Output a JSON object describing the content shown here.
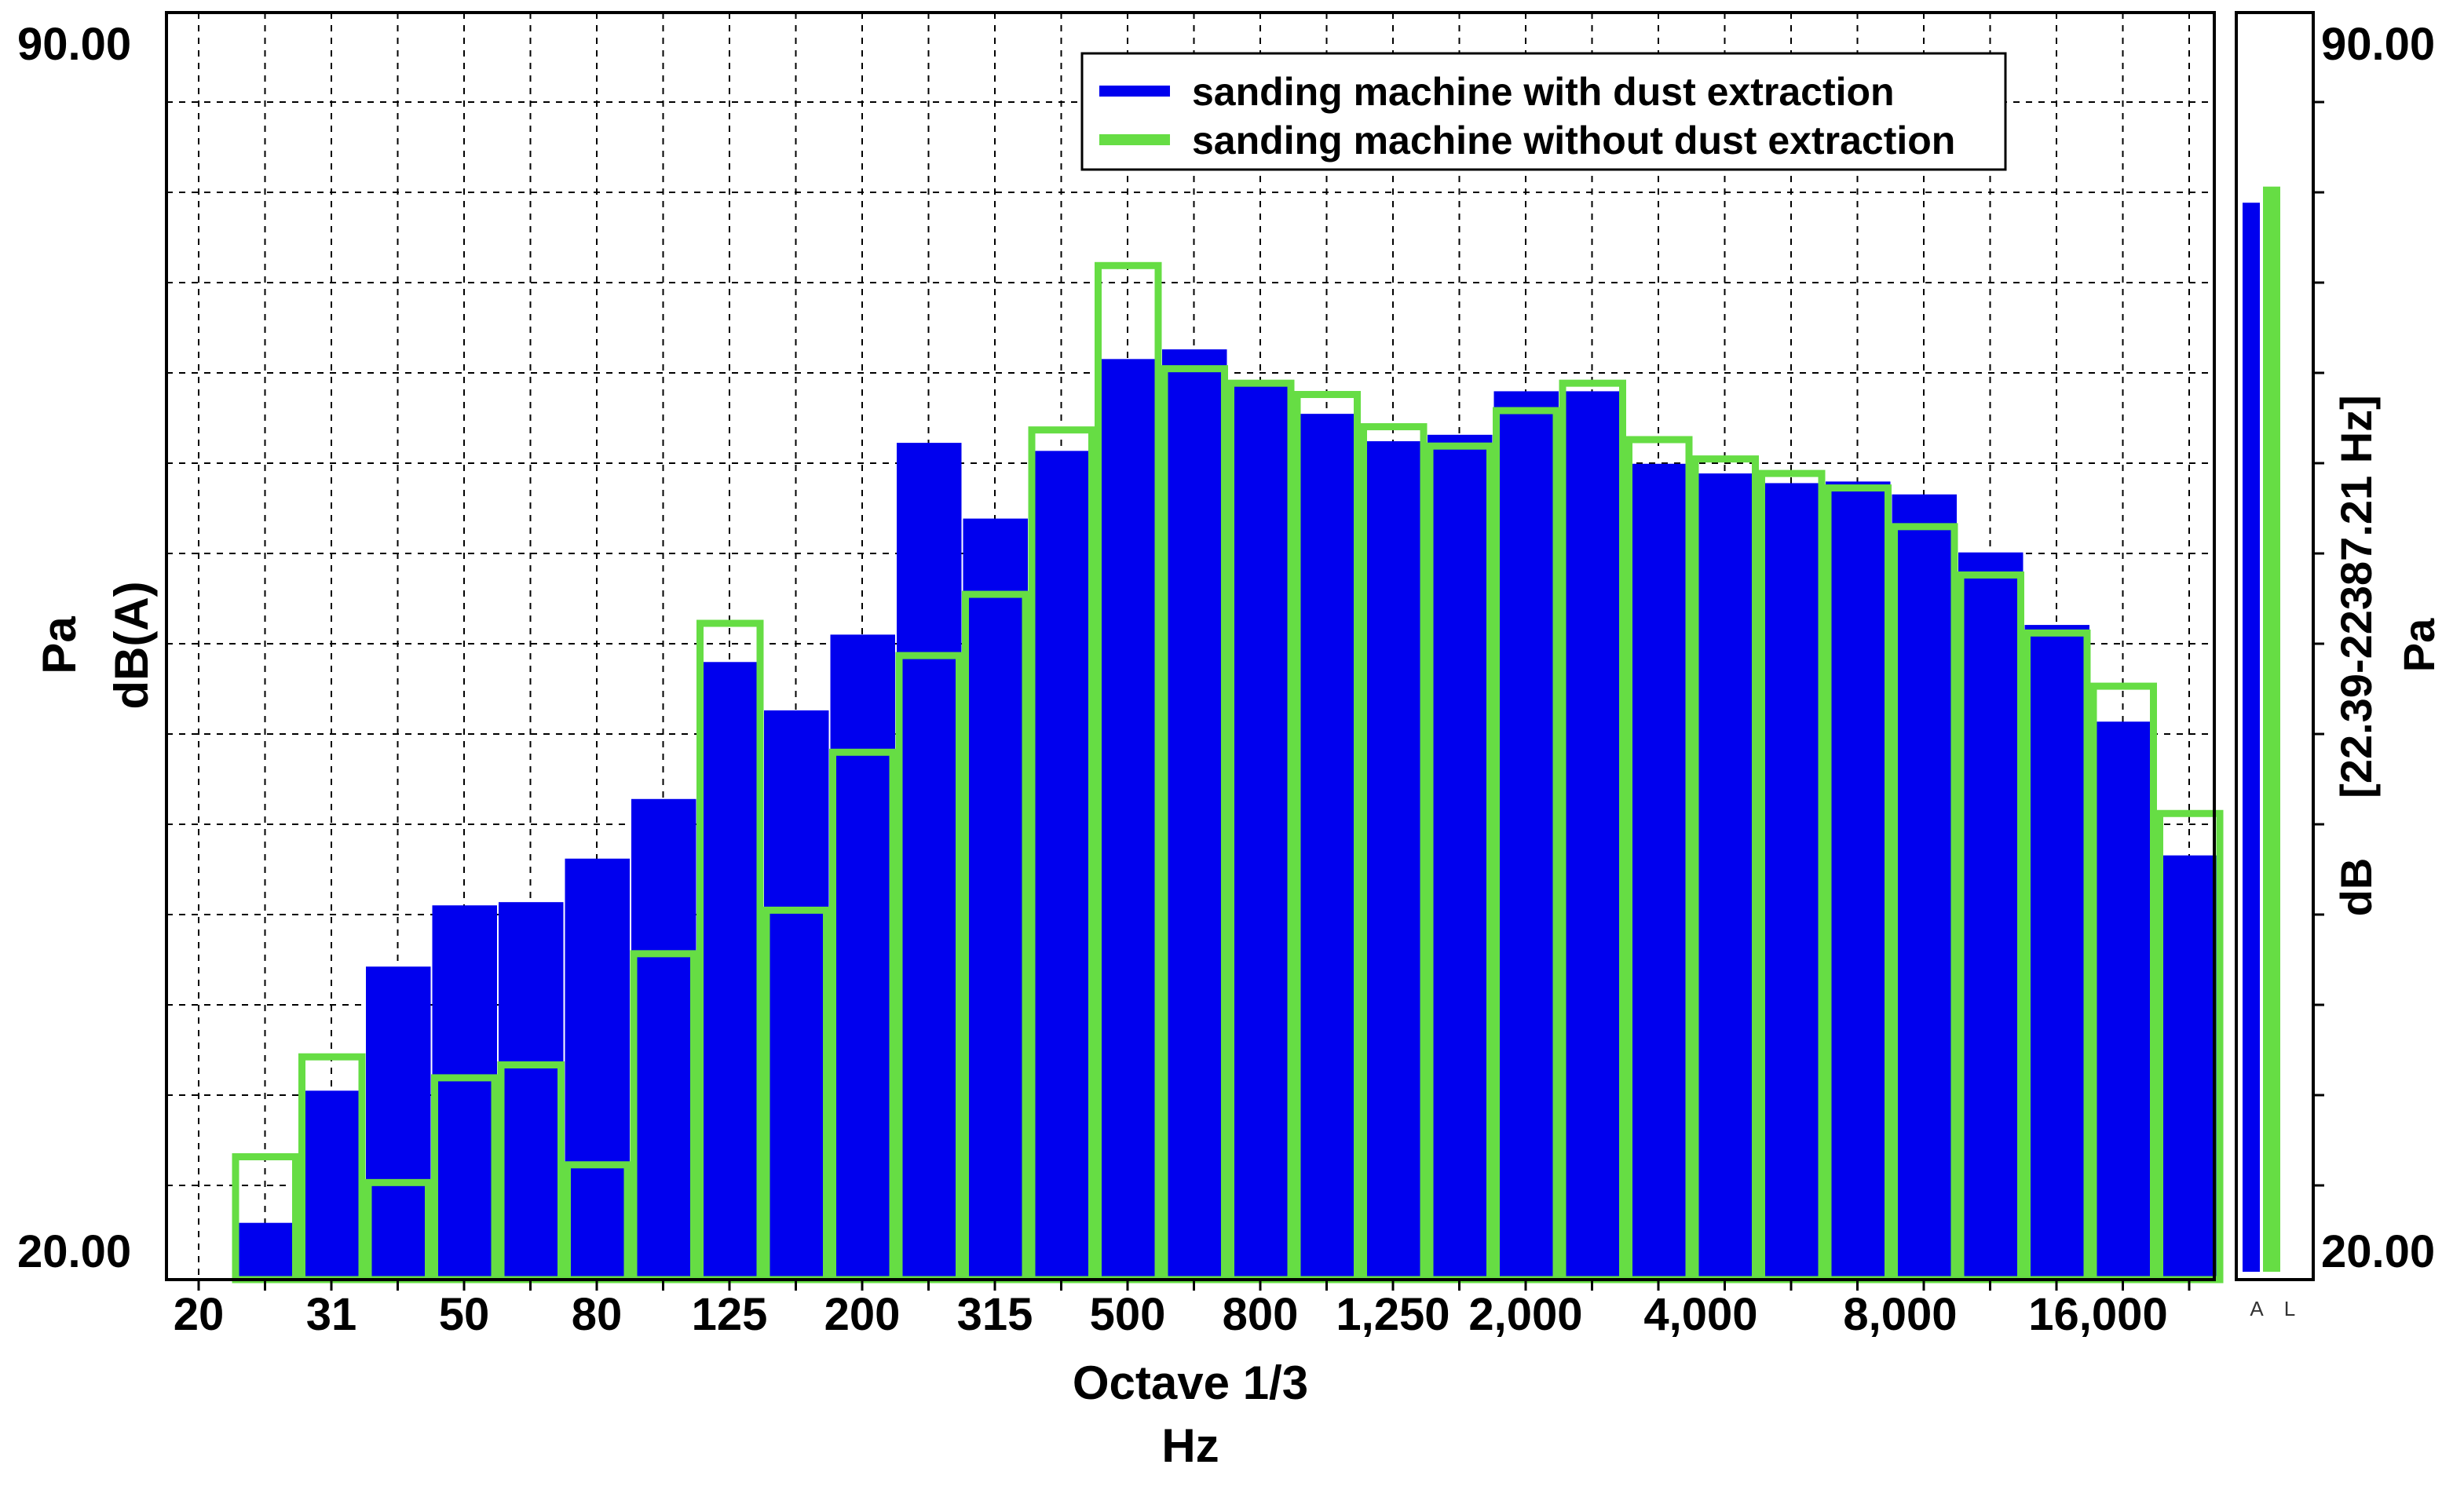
{
  "chart_data": {
    "type": "bar",
    "xlabel_top": "Octave 1/3",
    "xlabel_bottom": "Hz",
    "ylabel_outer": "Pa",
    "ylabel_inner": "dB(A)",
    "right_label_db": "dB",
    "right_label_range": "[22.39-22387.21 Hz]",
    "right_label_pa": "Pa",
    "ylim": [
      20,
      90
    ],
    "y_tick_top": "90.00",
    "y_tick_bottom": "20.00",
    "right_tick_top": "90.00",
    "right_tick_bottom": "20.00",
    "x_tick_labels": [
      "20",
      "31",
      "50",
      "80",
      "125",
      "200",
      "315",
      "500",
      "800",
      "1,250",
      "2,000",
      "4,000",
      "8,000",
      "16,000"
    ],
    "categories": [
      "25",
      "31.5",
      "40",
      "50",
      "63",
      "80",
      "100",
      "125",
      "160",
      "200",
      "250",
      "315",
      "400",
      "500",
      "630",
      "800",
      "1000",
      "1250",
      "1600",
      "2000",
      "2500",
      "3150",
      "4000",
      "5000",
      "6300",
      "8000",
      "10000",
      "12500",
      "16000",
      "20000"
    ],
    "series": [
      {
        "name": "sanding machine with dust extraction",
        "color": "#0000ee",
        "style": "filled",
        "values": [
          20.6,
          28.8,
          36.5,
          40.3,
          40.5,
          43.2,
          46.9,
          55.4,
          52.4,
          57.1,
          69.0,
          64.3,
          68.5,
          74.2,
          74.8,
          72.6,
          70.8,
          69.1,
          69.5,
          72.2,
          72.2,
          67.7,
          67.1,
          66.5,
          66.6,
          65.8,
          62.2,
          57.7,
          51.7,
          43.4
        ]
      },
      {
        "name": "sanding machine without dust extraction",
        "color": "#66dd44",
        "style": "outline",
        "values": [
          24.7,
          30.9,
          23.1,
          29.6,
          30.4,
          24.2,
          37.3,
          57.8,
          40.0,
          49.8,
          55.8,
          59.6,
          69.8,
          80.0,
          73.6,
          72.7,
          72.0,
          70.0,
          68.8,
          71.0,
          72.7,
          69.2,
          68.0,
          67.1,
          66.2,
          63.8,
          60.8,
          57.2,
          53.9,
          46.0
        ]
      }
    ],
    "overall": {
      "labels": [
        "A",
        "L"
      ],
      "values": [
        83.9,
        84.9
      ],
      "colors": [
        "#0000ee",
        "#66dd44"
      ]
    },
    "grid": true,
    "legend_position": "top-center"
  }
}
